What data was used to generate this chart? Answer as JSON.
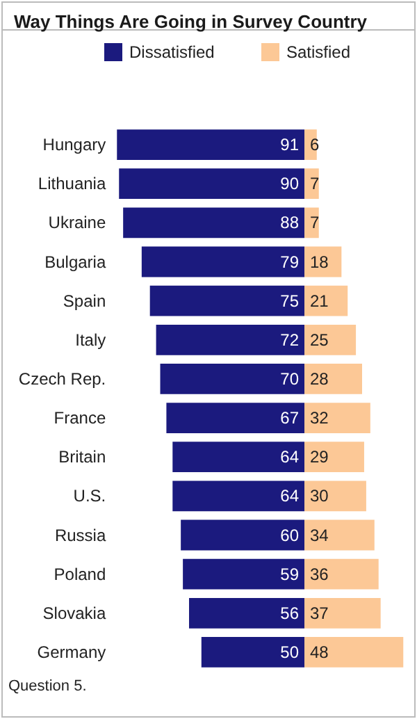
{
  "chart_data": [
    {
      "type": "bar",
      "orientation": "horizontal",
      "title": "Way Things Are Going in Survey Country",
      "categories": [
        "Hungary",
        "Lithuania",
        "Ukraine",
        "Bulgaria",
        "Spain",
        "Italy",
        "Czech Rep.",
        "France",
        "Britain",
        "U.S.",
        "Russia",
        "Poland",
        "Slovakia",
        "Germany"
      ],
      "series": [
        {
          "name": "Dissatisfied",
          "color": "#1b1a7e",
          "values": [
            91,
            90,
            88,
            79,
            75,
            72,
            70,
            67,
            64,
            64,
            60,
            59,
            56,
            50
          ]
        }
      ],
      "xlim": [
        91,
        0
      ],
      "data_labels": true,
      "legend": "top",
      "tick_labels": "y",
      "annotations": [
        "Question 5."
      ]
    },
    {
      "type": "bar",
      "orientation": "horizontal",
      "categories": [
        null,
        null,
        null,
        null,
        null,
        null,
        null,
        null,
        null,
        null,
        null,
        null,
        null,
        null
      ],
      "xlim": [
        0,
        48
      ],
      "series": [
        {
          "name": "Satisfied",
          "color": "#fcc896",
          "values": [
            6,
            7,
            7,
            18,
            21,
            25,
            28,
            32,
            29,
            30,
            34,
            36,
            37,
            48
          ]
        }
      ],
      "data_labels": true,
      "legend": "top",
      "tick_labels": false
    }
  ]
}
